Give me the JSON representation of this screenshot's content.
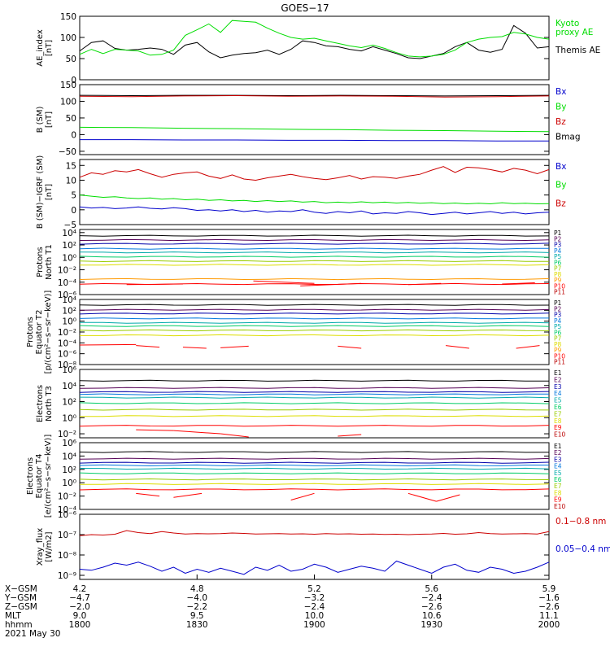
{
  "title": "GOES−17",
  "colors": {
    "black": "#000000",
    "green": "#00dd00",
    "blue": "#0000cc",
    "red": "#cc0000",
    "darkred": "#990000"
  },
  "chart_data": [
    {
      "type": "line",
      "ylabel": "AE_index\n[nT]",
      "ylim": [
        0,
        150
      ],
      "yticks": [
        0,
        50,
        100,
        150
      ],
      "yticklabels": [
        "0",
        "50",
        "100",
        "150"
      ],
      "legend": [
        {
          "label": "Kyoto\nproxy AE",
          "color": "#00dd00"
        },
        {
          "label": "Themis AE",
          "color": "#000000"
        }
      ],
      "series": [
        {
          "name": "Themis AE",
          "color": "#000000",
          "values": [
            68,
            88,
            92,
            74,
            70,
            72,
            75,
            72,
            60,
            82,
            88,
            66,
            52,
            58,
            62,
            64,
            70,
            60,
            72,
            92,
            88,
            80,
            78,
            72,
            68,
            78,
            70,
            62,
            52,
            50,
            56,
            62,
            78,
            88,
            70,
            65,
            72,
            128,
            110,
            75,
            78
          ]
        },
        {
          "name": "Kyoto proxy AE",
          "color": "#00dd00",
          "values": [
            60,
            72,
            62,
            72,
            70,
            68,
            58,
            60,
            70,
            105,
            118,
            132,
            112,
            140,
            138,
            136,
            122,
            110,
            100,
            96,
            98,
            92,
            86,
            80,
            76,
            82,
            74,
            64,
            56,
            54,
            56,
            60,
            70,
            88,
            96,
            100,
            102,
            112,
            108,
            100,
            96
          ]
        }
      ]
    },
    {
      "type": "line",
      "ylabel": "B (SM)\n[nT]",
      "ylim": [
        -60,
        150
      ],
      "yticks": [
        -50,
        0,
        50,
        100,
        150
      ],
      "yticklabels": [
        "−50",
        "0",
        "50",
        "100",
        "150"
      ],
      "legend": [
        {
          "label": "Bx",
          "color": "#0000cc"
        },
        {
          "label": "By",
          "color": "#00dd00"
        },
        {
          "label": "Bz",
          "color": "#cc0000"
        },
        {
          "label": "Bmag",
          "color": "#000000"
        }
      ],
      "series": [
        {
          "name": "Bmag",
          "color": "#000000",
          "values": [
            118,
            117,
            118,
            118,
            117,
            118,
            117,
            116,
            117,
            118
          ]
        },
        {
          "name": "Bz",
          "color": "#cc0000",
          "values": [
            115,
            114,
            116,
            117,
            115,
            116,
            115,
            113,
            114,
            116
          ]
        },
        {
          "name": "By",
          "color": "#00dd00",
          "values": [
            22,
            21,
            19,
            18,
            16,
            15,
            13,
            12,
            10,
            9
          ]
        },
        {
          "name": "Bx",
          "color": "#0000cc",
          "values": [
            -15,
            -15,
            -16,
            -16,
            -17,
            -17,
            -18,
            -18,
            -19,
            -19
          ]
        }
      ]
    },
    {
      "type": "line",
      "ylabel": "B (SM)−IGRF (SM)\n[nT]",
      "ylim": [
        -5,
        17
      ],
      "yticks": [
        -5,
        0,
        5,
        10,
        15
      ],
      "yticklabels": [
        "−5",
        "0",
        "5",
        "10",
        "15"
      ],
      "legend": [
        {
          "label": "Bx",
          "color": "#0000cc"
        },
        {
          "label": "By",
          "color": "#00dd00"
        },
        {
          "label": "Bz",
          "color": "#cc0000"
        }
      ],
      "series": [
        {
          "name": "Bz",
          "color": "#cc0000",
          "values": [
            11,
            12.5,
            12,
            13.2,
            12.8,
            13.6,
            12.2,
            11,
            12,
            12.5,
            12.8,
            11.4,
            10.6,
            11.8,
            10.4,
            10,
            10.8,
            11.4,
            12,
            11.2,
            10.6,
            10.2,
            10.8,
            11.6,
            10.4,
            11.2,
            11,
            10.6,
            11.4,
            12,
            13.4,
            14.6,
            12.6,
            14.4,
            14.2,
            13.6,
            12.8,
            14,
            13.4,
            12.2,
            13.6
          ]
        },
        {
          "name": "By",
          "color": "#00dd00",
          "values": [
            5,
            4.6,
            4.2,
            4.4,
            4,
            3.8,
            4,
            3.6,
            3.8,
            3.4,
            3.6,
            3.2,
            3.4,
            3,
            3.2,
            2.8,
            3.1,
            2.8,
            3,
            2.6,
            2.8,
            2.4,
            2.6,
            2.4,
            2.7,
            2.4,
            2.6,
            2.3,
            2.5,
            2.2,
            2.4,
            2.1,
            2.3,
            2,
            2.2,
            2,
            2.4,
            2.1,
            2.2,
            2,
            2.1
          ]
        },
        {
          "name": "Bx",
          "color": "#0000cc",
          "values": [
            1,
            0.6,
            0.8,
            0.4,
            0.6,
            1,
            0.5,
            0.3,
            0.7,
            0.4,
            -0.2,
            0,
            -0.4,
            0,
            -0.6,
            -0.2,
            -0.8,
            -0.4,
            -0.6,
            0,
            -0.8,
            -1.2,
            -0.6,
            -1,
            -0.4,
            -1.4,
            -1,
            -1.2,
            -0.6,
            -1,
            -1.6,
            -1.2,
            -0.8,
            -1.4,
            -1,
            -0.6,
            -1.2,
            -0.8,
            -1.4,
            -1,
            -0.8
          ]
        }
      ]
    },
    {
      "type": "line",
      "yscale": "log",
      "ylabel": "Protons\nNorth T1",
      "ylim": [
        -6,
        4.5
      ],
      "yticks": [
        -6,
        -4,
        -2,
        0,
        2,
        4
      ],
      "yticklabels": [
        "10⁻⁶",
        "10⁻⁴",
        "10⁻²",
        "10⁰",
        "10²",
        "10⁴"
      ],
      "legend_labels": [
        "P1",
        "P2",
        "P3",
        "P4",
        "P5",
        "P6",
        "P7",
        "P8",
        "P9",
        "P10",
        "P11"
      ],
      "legend_colors": [
        "#000000",
        "#550055",
        "#0000aa",
        "#0077dd",
        "#00aaaa",
        "#00cc66",
        "#99cc00",
        "#dddd00",
        "#ff9900",
        "#ff0000",
        "#bb0000"
      ],
      "levels_log10": [
        3.5,
        2.8,
        2.2,
        1.4,
        0.8,
        0.1,
        -0.6,
        -1.2,
        -3.5,
        -4.3
      ],
      "broken": [
        [
          0.1,
          0.22,
          -4.4,
          -4.3
        ],
        [
          0.37,
          0.5,
          -3.8,
          -4.2
        ],
        [
          0.47,
          0.6,
          -4.6,
          -4.2
        ],
        [
          0.7,
          0.77,
          -4.4,
          -4.2
        ],
        [
          0.9,
          0.97,
          -4.3,
          -4.1
        ]
      ]
    },
    {
      "type": "line",
      "yscale": "log",
      "ylabel": "Protons\nEquator T2",
      "ylim": [
        -8,
        4
      ],
      "yticks": [
        -8,
        -6,
        -4,
        -2,
        0,
        2,
        4
      ],
      "yticklabels": [
        "10⁻⁸",
        "10⁻⁶",
        "10⁻⁴",
        "10⁻²",
        "10⁰",
        "10²",
        "10⁴"
      ],
      "unit": "[p/(cm²−s−sr−keV)]",
      "legend_labels": [
        "P1",
        "P2",
        "P3",
        "P4",
        "P5",
        "P6",
        "P7",
        "P8",
        "P9",
        "P10",
        "P11"
      ],
      "legend_colors": [
        "#000000",
        "#550055",
        "#0000aa",
        "#0077dd",
        "#00aaaa",
        "#00cc66",
        "#99cc00",
        "#dddd00",
        "#ff9900",
        "#ff0000",
        "#bb0000"
      ],
      "levels_log10": [
        3,
        2.1,
        1.4,
        0.5,
        -0.3,
        -0.9,
        -1.7,
        -2.6
      ],
      "segments": [
        [
          0,
          0.12,
          -4.4,
          -4.3
        ],
        [
          0.12,
          0.17,
          -4.5,
          -4.8
        ],
        [
          0.22,
          0.27,
          -4.8,
          -5.0
        ],
        [
          0.3,
          0.36,
          -4.9,
          -4.6
        ],
        [
          0.55,
          0.6,
          -4.6,
          -5.0
        ],
        [
          0.78,
          0.83,
          -4.5,
          -5.0
        ],
        [
          0.93,
          0.98,
          -5.0,
          -4.5
        ]
      ]
    },
    {
      "type": "line",
      "yscale": "log",
      "ylabel": "Electrons\nNorth T3",
      "ylim": [
        -2.5,
        6
      ],
      "yticks": [
        -2,
        0,
        2,
        4,
        6
      ],
      "yticklabels": [
        "10⁻²",
        "10⁰",
        "10²",
        "10⁴",
        "10⁶"
      ],
      "legend_labels": [
        "E1",
        "E2",
        "E3",
        "E4",
        "E5",
        "E6",
        "E7",
        "E8",
        "E9",
        "E10"
      ],
      "legend_colors": [
        "#000000",
        "#550055",
        "#0000aa",
        "#0077dd",
        "#00aaaa",
        "#00cc66",
        "#99cc00",
        "#dddd00",
        "#ff0000",
        "#bb0000"
      ],
      "levels_log10": [
        4.6,
        3.7,
        3.2,
        2.9,
        2.5,
        1.8,
        1.0,
        0.2,
        -1.0
      ],
      "segments": [
        [
          0.12,
          0.2,
          -1.5,
          -1.6
        ],
        [
          0.2,
          0.3,
          -1.6,
          -2.0
        ],
        [
          0.3,
          0.36,
          -2.0,
          -2.4
        ],
        [
          0.55,
          0.6,
          -2.3,
          -2.1
        ]
      ]
    },
    {
      "type": "line",
      "yscale": "log",
      "ylabel": "Electrons\nEquator T4",
      "ylim": [
        -4,
        6
      ],
      "yticks": [
        -4,
        -2,
        0,
        2,
        4,
        6
      ],
      "yticklabels": [
        "10⁻⁴",
        "10⁻²",
        "10⁰",
        "10²",
        "10⁴",
        "10⁶"
      ],
      "unit": "[e/(cm²−s−sr−keV)]",
      "legend_labels": [
        "E1",
        "E2",
        "E3",
        "E4",
        "E5",
        "E6",
        "E7",
        "E8",
        "E9",
        "E10"
      ],
      "legend_colors": [
        "#000000",
        "#550055",
        "#0000aa",
        "#0077dd",
        "#00aaaa",
        "#00cc66",
        "#99cc00",
        "#dddd00",
        "#ff0000",
        "#bb0000"
      ],
      "levels_log10": [
        4.6,
        3.6,
        3.0,
        2.6,
        2.1,
        1.4,
        0.5,
        -0.2,
        -1.0
      ],
      "segments": [
        [
          0.12,
          0.17,
          -1.6,
          -2.0
        ],
        [
          0.2,
          0.26,
          -2.2,
          -1.6
        ],
        [
          0.45,
          0.5,
          -2.6,
          -1.6
        ],
        [
          0.7,
          0.76,
          -1.6,
          -2.8
        ],
        [
          0.76,
          0.81,
          -2.8,
          -1.8
        ]
      ]
    },
    {
      "type": "line",
      "yscale": "log",
      "ylabel": "Xray_flux\n[W/m2]",
      "ylim": [
        -9.2,
        -6
      ],
      "yticks": [
        -9,
        -8,
        -7,
        -6
      ],
      "yticklabels": [
        "10⁻⁹",
        "10⁻⁸",
        "10⁻⁷",
        "10⁻⁶"
      ],
      "legend": [
        {
          "label": "0.1−0.8 nm",
          "color": "#cc0000"
        },
        {
          "label": "0.05−0.4 nm",
          "color": "#0000cc"
        }
      ],
      "series": [
        {
          "name": "0.1−0.8 nm",
          "color": "#cc0000",
          "values": [
            -7.05,
            -7.0,
            -7.02,
            -6.98,
            -6.8,
            -6.9,
            -6.95,
            -6.85,
            -6.92,
            -6.97,
            -6.95,
            -6.96,
            -6.95,
            -6.92,
            -6.94,
            -6.97,
            -6.96,
            -6.95,
            -6.97,
            -6.96,
            -6.98,
            -6.95,
            -6.97,
            -6.96,
            -6.98,
            -6.97,
            -6.99,
            -6.98,
            -7.0,
            -6.98,
            -6.97,
            -6.94,
            -6.98,
            -6.96,
            -6.9,
            -6.95,
            -6.97,
            -6.96,
            -6.95,
            -6.97,
            -6.85
          ]
        },
        {
          "name": "0.05−0.4 nm",
          "color": "#0000cc",
          "values": [
            -8.7,
            -8.75,
            -8.6,
            -8.4,
            -8.5,
            -8.35,
            -8.55,
            -8.8,
            -8.6,
            -8.9,
            -8.7,
            -8.85,
            -8.65,
            -8.8,
            -8.95,
            -8.6,
            -8.75,
            -8.5,
            -8.8,
            -8.7,
            -8.45,
            -8.6,
            -8.85,
            -8.7,
            -8.55,
            -8.65,
            -8.8,
            -8.3,
            -8.5,
            -8.7,
            -8.9,
            -8.6,
            -8.45,
            -8.75,
            -8.85,
            -8.6,
            -8.7,
            -8.9,
            -8.8,
            -8.6,
            -8.35
          ]
        }
      ]
    }
  ],
  "xaxis": {
    "positions": [
      0,
      0.25,
      0.5,
      0.75,
      1
    ],
    "row_labels": [
      "X−GSM",
      "Y−GSM",
      "Z−GSM",
      "MLT",
      "hhmm"
    ],
    "rows": [
      [
        "4.2",
        "4.8",
        "5.2",
        "5.6",
        "5.9"
      ],
      [
        "−4.7",
        "−4.0",
        "−3.2",
        "−2.4",
        "−1.6"
      ],
      [
        "−2.0",
        "−2.2",
        "−2.4",
        "−2.6",
        "−2.6"
      ],
      [
        "9.0",
        "9.5",
        "10.0",
        "10.6",
        "11.1"
      ],
      [
        "1800",
        "1830",
        "1900",
        "1930",
        "2000"
      ]
    ],
    "date": "2021 May 30"
  }
}
